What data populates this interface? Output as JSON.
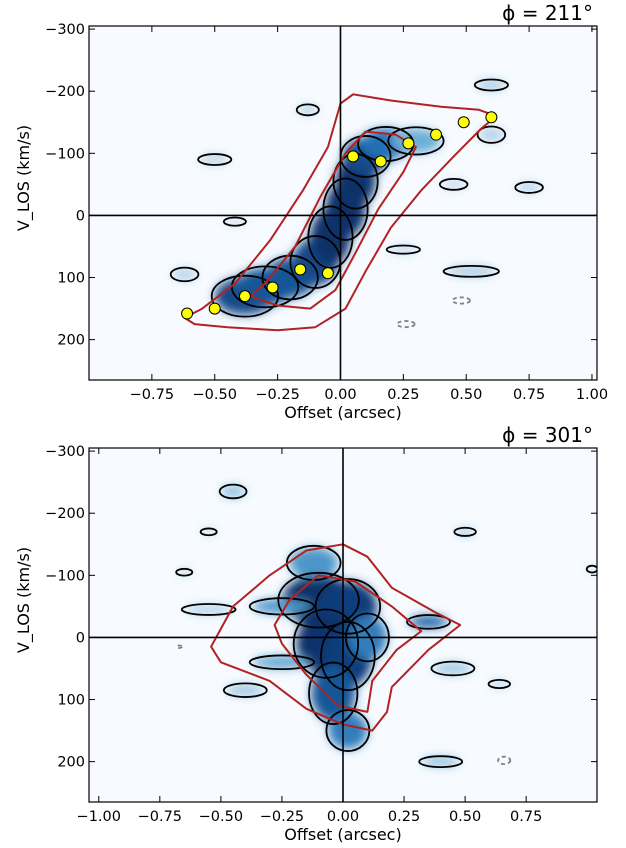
{
  "chart_data": [
    {
      "type": "heatmap",
      "title": "ϕ = 211°",
      "xlabel": "Offset (arcsec)",
      "ylabel": "V_LOS (km/s)",
      "xlim": [
        -1.0,
        1.02
      ],
      "ylim": [
        265,
        -305
      ],
      "y_inverted": true,
      "x_ticks": [
        -0.75,
        -0.5,
        -0.25,
        0.0,
        0.25,
        0.5,
        0.75,
        1.0
      ],
      "x_tick_labels": [
        "−0.75",
        "−0.50",
        "−0.25",
        "0.00",
        "0.25",
        "0.50",
        "0.75",
        "1.00"
      ],
      "y_ticks": [
        -300,
        -200,
        -100,
        0,
        100,
        200
      ],
      "y_tick_labels": [
        "−300",
        "−200",
        "−100",
        "0",
        "100",
        "200"
      ],
      "reference_lines": {
        "x": 0,
        "y": 0
      },
      "colormap": "Blues",
      "emission_ridge": [
        {
          "x": -0.38,
          "v": 130,
          "w": 0.12,
          "h": 30,
          "level": 0.9
        },
        {
          "x": -0.3,
          "v": 115,
          "w": 0.12,
          "h": 30,
          "level": 0.85
        },
        {
          "x": -0.2,
          "v": 100,
          "w": 0.1,
          "h": 32,
          "level": 0.85
        },
        {
          "x": -0.1,
          "v": 75,
          "w": 0.09,
          "h": 38,
          "level": 0.9
        },
        {
          "x": -0.04,
          "v": 35,
          "w": 0.08,
          "h": 45,
          "level": 1.0
        },
        {
          "x": 0.02,
          "v": -10,
          "w": 0.08,
          "h": 45,
          "level": 1.0
        },
        {
          "x": 0.06,
          "v": -55,
          "w": 0.08,
          "h": 40,
          "level": 1.0
        },
        {
          "x": 0.1,
          "v": -95,
          "w": 0.09,
          "h": 30,
          "level": 0.9
        },
        {
          "x": 0.18,
          "v": -115,
          "w": 0.1,
          "h": 25,
          "level": 0.75
        },
        {
          "x": 0.3,
          "v": -120,
          "w": 0.1,
          "h": 20,
          "level": 0.5
        }
      ],
      "emission_clumps": [
        {
          "x": 0.6,
          "v": -210,
          "w": 0.06,
          "h": 8,
          "level": 0.35
        },
        {
          "x": -0.13,
          "v": -170,
          "w": 0.04,
          "h": 8,
          "level": 0.3
        },
        {
          "x": -0.5,
          "v": -90,
          "w": 0.06,
          "h": 8,
          "level": 0.3
        },
        {
          "x": -0.42,
          "v": 10,
          "w": 0.04,
          "h": 6,
          "level": 0.25
        },
        {
          "x": 0.75,
          "v": -45,
          "w": 0.05,
          "h": 8,
          "level": 0.3
        },
        {
          "x": 0.52,
          "v": 90,
          "w": 0.1,
          "h": 8,
          "level": 0.35
        },
        {
          "x": -0.62,
          "v": 95,
          "w": 0.05,
          "h": 10,
          "level": 0.3
        },
        {
          "x": 0.6,
          "v": -130,
          "w": 0.05,
          "h": 12,
          "level": 0.3
        },
        {
          "x": 0.25,
          "v": 55,
          "w": 0.06,
          "h": 6,
          "level": 0.3
        },
        {
          "x": 0.45,
          "v": -50,
          "w": 0.05,
          "h": 8,
          "level": 0.25
        }
      ],
      "model_contours": [
        [
          [
            -0.62,
            165
          ],
          [
            -0.58,
            175
          ],
          [
            -0.45,
            180
          ],
          [
            -0.25,
            185
          ],
          [
            -0.1,
            180
          ],
          [
            0.02,
            150
          ],
          [
            0.1,
            90
          ],
          [
            0.2,
            20
          ],
          [
            0.32,
            -40
          ],
          [
            0.45,
            -95
          ],
          [
            0.56,
            -140
          ],
          [
            0.62,
            -160
          ],
          [
            0.55,
            -170
          ],
          [
            0.4,
            -175
          ],
          [
            0.2,
            -185
          ],
          [
            0.05,
            -195
          ],
          [
            0.0,
            -180
          ],
          [
            -0.05,
            -110
          ],
          [
            -0.15,
            -40
          ],
          [
            -0.28,
            40
          ],
          [
            -0.42,
            110
          ],
          [
            -0.55,
            150
          ],
          [
            -0.62,
            165
          ]
        ],
        [
          [
            -0.36,
            130
          ],
          [
            -0.25,
            145
          ],
          [
            -0.12,
            150
          ],
          [
            -0.02,
            120
          ],
          [
            0.06,
            60
          ],
          [
            0.15,
            -10
          ],
          [
            0.25,
            -70
          ],
          [
            0.3,
            -110
          ],
          [
            0.22,
            -130
          ],
          [
            0.1,
            -135
          ],
          [
            0.02,
            -100
          ],
          [
            -0.08,
            -30
          ],
          [
            -0.18,
            50
          ],
          [
            -0.3,
            110
          ],
          [
            -0.36,
            130
          ]
        ]
      ],
      "data_points": [
        {
          "x": -0.61,
          "v": 158
        },
        {
          "x": -0.5,
          "v": 150
        },
        {
          "x": -0.38,
          "v": 130
        },
        {
          "x": -0.27,
          "v": 116
        },
        {
          "x": -0.16,
          "v": 87
        },
        {
          "x": -0.05,
          "v": 93
        },
        {
          "x": 0.05,
          "v": -95
        },
        {
          "x": 0.16,
          "v": -87
        },
        {
          "x": 0.27,
          "v": -116
        },
        {
          "x": 0.38,
          "v": -130
        },
        {
          "x": 0.49,
          "v": -150
        },
        {
          "x": 0.6,
          "v": -158
        }
      ],
      "negative_contours": [
        {
          "x": 0.48,
          "v": 137,
          "rx": 0.035,
          "ry": 5
        },
        {
          "x": 0.26,
          "v": 175,
          "rx": 0.035,
          "ry": 5
        }
      ]
    },
    {
      "type": "heatmap",
      "title": "ϕ = 301°",
      "xlabel": "Offset (arcsec)",
      "ylabel": "V_LOS (km/s)",
      "xlim": [
        -1.04,
        1.04
      ],
      "ylim": [
        265,
        -305
      ],
      "y_inverted": true,
      "x_ticks": [
        -1.0,
        -0.75,
        -0.5,
        -0.25,
        0.0,
        0.25,
        0.5,
        0.75
      ],
      "x_tick_labels": [
        "−1.00",
        "−0.75",
        "−0.50",
        "−0.25",
        "0.00",
        "0.25",
        "0.50",
        "0.75"
      ],
      "y_ticks": [
        -300,
        -200,
        -100,
        0,
        100,
        200
      ],
      "y_tick_labels": [
        "−300",
        "−200",
        "−100",
        "0",
        "100",
        "200"
      ],
      "reference_lines": {
        "x": 0,
        "y": 0
      },
      "colormap": "Blues",
      "emission_ridge": [
        {
          "x": -0.1,
          "v": -60,
          "w": 0.15,
          "h": 40,
          "level": 1.0
        },
        {
          "x": 0.02,
          "v": -50,
          "w": 0.12,
          "h": 40,
          "level": 0.95
        },
        {
          "x": -0.07,
          "v": 10,
          "w": 0.12,
          "h": 50,
          "level": 1.0
        },
        {
          "x": 0.02,
          "v": 30,
          "w": 0.1,
          "h": 50,
          "level": 0.95
        },
        {
          "x": -0.04,
          "v": 90,
          "w": 0.09,
          "h": 45,
          "level": 0.85
        },
        {
          "x": 0.02,
          "v": 150,
          "w": 0.08,
          "h": 30,
          "level": 0.7
        },
        {
          "x": -0.12,
          "v": -120,
          "w": 0.1,
          "h": 25,
          "level": 0.6
        },
        {
          "x": 0.1,
          "v": 0,
          "w": 0.08,
          "h": 35,
          "level": 0.7
        },
        {
          "x": 0.35,
          "v": -25,
          "w": 0.08,
          "h": 10,
          "level": 0.8
        },
        {
          "x": -0.25,
          "v": -50,
          "w": 0.12,
          "h": 12,
          "level": 0.6
        },
        {
          "x": -0.25,
          "v": 40,
          "w": 0.12,
          "h": 10,
          "level": 0.55
        }
      ],
      "emission_clumps": [
        {
          "x": -0.45,
          "v": -235,
          "w": 0.05,
          "h": 10,
          "level": 0.4
        },
        {
          "x": 0.4,
          "v": 200,
          "w": 0.08,
          "h": 8,
          "level": 0.4
        },
        {
          "x": 0.5,
          "v": -170,
          "w": 0.04,
          "h": 6,
          "level": 0.35
        },
        {
          "x": 0.64,
          "v": 75,
          "w": 0.04,
          "h": 6,
          "level": 0.3
        },
        {
          "x": -0.55,
          "v": -170,
          "w": 0.03,
          "h": 5,
          "level": 0.3
        },
        {
          "x": -0.65,
          "v": -105,
          "w": 0.03,
          "h": 5,
          "level": 0.3
        },
        {
          "x": -0.55,
          "v": -45,
          "w": 0.1,
          "h": 8,
          "level": 0.3
        },
        {
          "x": -0.4,
          "v": 85,
          "w": 0.08,
          "h": 10,
          "level": 0.35
        },
        {
          "x": 0.45,
          "v": 50,
          "w": 0.08,
          "h": 10,
          "level": 0.35
        },
        {
          "x": 1.02,
          "v": -110,
          "w": 0.02,
          "h": 5,
          "level": 0.3
        }
      ],
      "model_contours": [
        [
          [
            -0.54,
            15
          ],
          [
            -0.5,
            40
          ],
          [
            -0.3,
            70
          ],
          [
            -0.15,
            115
          ],
          [
            0.0,
            140
          ],
          [
            0.12,
            150
          ],
          [
            0.18,
            120
          ],
          [
            0.2,
            80
          ],
          [
            0.35,
            20
          ],
          [
            0.48,
            -20
          ],
          [
            0.38,
            -40
          ],
          [
            0.2,
            -80
          ],
          [
            0.1,
            -130
          ],
          [
            0.0,
            -150
          ],
          [
            -0.15,
            -140
          ],
          [
            -0.3,
            -100
          ],
          [
            -0.45,
            -50
          ],
          [
            -0.54,
            15
          ]
        ],
        [
          [
            -0.25,
            10
          ],
          [
            -0.15,
            60
          ],
          [
            -0.02,
            110
          ],
          [
            0.1,
            120
          ],
          [
            0.12,
            70
          ],
          [
            0.22,
            20
          ],
          [
            0.32,
            -10
          ],
          [
            0.2,
            -50
          ],
          [
            0.05,
            -90
          ],
          [
            -0.1,
            -100
          ],
          [
            -0.22,
            -60
          ],
          [
            -0.28,
            -20
          ],
          [
            -0.25,
            10
          ]
        ]
      ],
      "data_points": [],
      "negative_contours": [
        {
          "x": 0.66,
          "v": 198,
          "rx": 0.025,
          "ry": 6
        },
        {
          "x": -0.67,
          "v": 15,
          "rx": 0.01,
          "ry": 2
        }
      ]
    }
  ]
}
